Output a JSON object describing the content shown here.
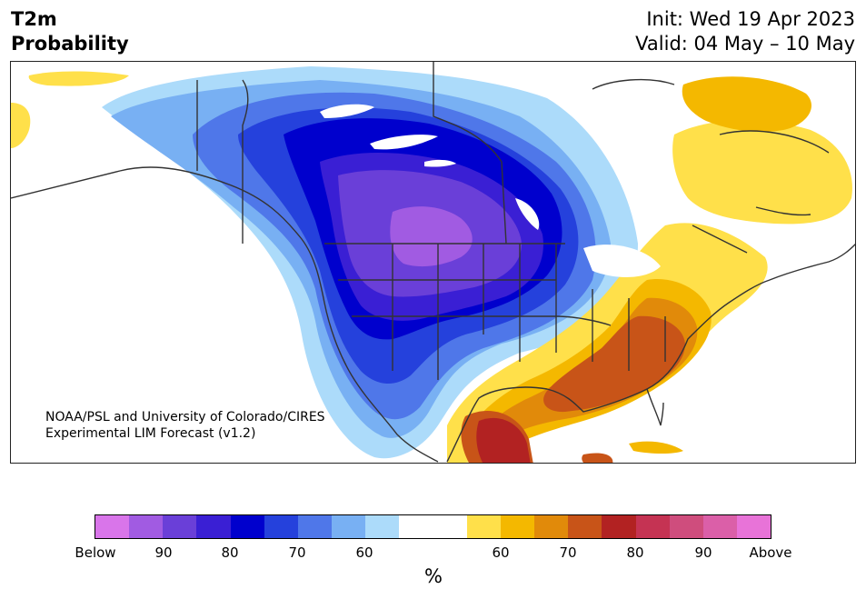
{
  "header": {
    "title_line1": "T2m",
    "title_line2": "Probability",
    "init": "Init: Wed 19 Apr 2023",
    "valid": "Valid: 04 May – 10 May"
  },
  "map": {
    "credit_line1": "NOAA/PSL and University of Colorado/CIRES",
    "credit_line2": "Experimental LIM Forecast (v1.2)"
  },
  "colorbar": {
    "unit": "%",
    "colors": [
      "#d975ea",
      "#a15be2",
      "#6a3fd8",
      "#3a1fd4",
      "#0000cd",
      "#2541dc",
      "#4f77e9",
      "#78b0f3",
      "#acdbfa",
      "#ffffff",
      "#ffffff",
      "#ffe04a",
      "#f4b800",
      "#e18a0a",
      "#c85418",
      "#b22222",
      "#c53353",
      "#cf4d7d",
      "#db5fa8",
      "#e873d8"
    ],
    "labels": [
      "Below",
      "90",
      "80",
      "70",
      "60",
      "60",
      "70",
      "80",
      "90",
      "Above"
    ]
  }
}
